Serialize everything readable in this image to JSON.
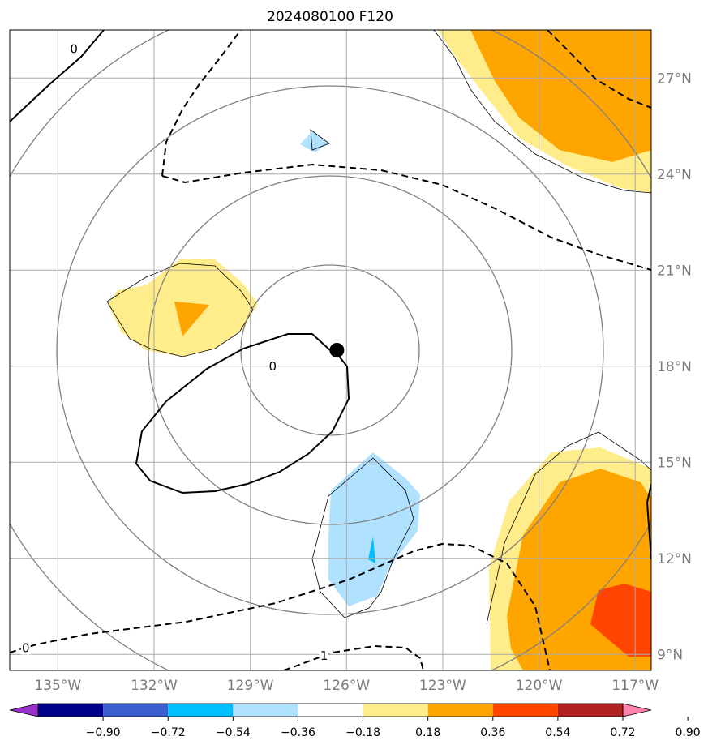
{
  "chart_data": {
    "type": "contour map",
    "title": "2024080100 F120",
    "lon_range": [
      -136.5,
      -116.5
    ],
    "lat_range": [
      8.5,
      28.5
    ],
    "lon_ticks": [
      "135°W",
      "132°W",
      "129°W",
      "126°W",
      "123°W",
      "120°W",
      "117°W"
    ],
    "lon_tick_values": [
      -135,
      -132,
      -129,
      -126,
      -123,
      -120,
      -117
    ],
    "lat_ticks": [
      "9°N",
      "12°N",
      "15°N",
      "18°N",
      "21°N",
      "24°N",
      "27°N"
    ],
    "lat_tick_values": [
      9,
      12,
      15,
      18,
      21,
      24,
      27
    ],
    "grid": true,
    "storm_center": {
      "lon": -126.3,
      "lat": 18.5
    },
    "contour_labels": [
      {
        "text": "0",
        "lon": -134.5,
        "lat": 27.9
      },
      {
        "text": "0",
        "lon": -128.3,
        "lat": 18.0
      },
      {
        "text": "0",
        "lon": -136.0,
        "lat": 9.2
      },
      {
        "text": "1",
        "lon": -126.7,
        "lat": 8.95
      }
    ],
    "colorbar": {
      "levels": [
        "−0.90",
        "−0.72",
        "−0.54",
        "−0.36",
        "−0.18",
        "0.18",
        "0.36",
        "0.54",
        "0.72",
        "0.90"
      ],
      "colors": [
        "#9932cc",
        "#00008b",
        "#3a5fcd",
        "#00bfff",
        "#b0e2ff",
        "#ffffff",
        "#ffec8b",
        "#ffa500",
        "#ff4500",
        "#b22222",
        "#ff82ab"
      ],
      "extend": "both"
    },
    "fill_colors": {
      "light_blue": "#b0e2ff",
      "blue": "#00bfff",
      "light_yellow": "#ffec8b",
      "orange": "#ffa500",
      "red_orange": "#ff4500"
    }
  }
}
